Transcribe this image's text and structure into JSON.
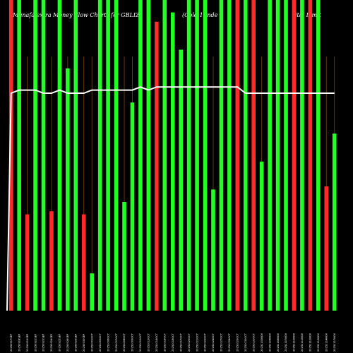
{
  "chart_data": {
    "type": "bar",
    "title_left": "Munafa extra Money Flow Charts for GBLIZ",
    "title_right": "(Gold 1 Inde",
    "title_right_end": "ital Limit",
    "categories": [
      "Wed 17 Sep",
      "Thu 18 Sep",
      "Fri 19 Sep",
      "Mon 22 Sep",
      "Tue 23 Sep",
      "Wed 24 Sep",
      "Thu 25 Sep",
      "Fri 26 Sep",
      "Mon 29 Sep",
      "Tue 30 Sep",
      "Wed 01 Oct",
      "Fri 03 Oct",
      "Mon 06 Oct",
      "Tue 07 Oct",
      "Wed 08 Oct",
      "Thu 09 Oct",
      "Fri 10 Oct",
      "Mon 13 Oct",
      "Tue 14 Oct",
      "Wed 15 Oct",
      "Thu 16 Oct",
      "Fri 17 Oct",
      "Mon 20 Oct",
      "Tue 21 Oct",
      "Thu 23 Oct",
      "Fri 24 Oct",
      "Mon 27 Oct",
      "Tue 28 Oct",
      "Wed 29 Oct",
      "Thu 30 Oct",
      "Fri 31 Oct",
      "Mon 03 Nov",
      "Tue 04 Nov",
      "Thu 06 Nov",
      "Fri 07 Nov",
      "Mon 10 Nov",
      "Tue 11 Nov",
      "Wed 12 Nov",
      "Thu 13 Nov",
      "Fri 14 Nov",
      "Mon 17 Nov"
    ],
    "tick_labels": [
      "20250917SEP",
      "20250918SEP",
      "20250919SEP",
      "20250922SEP",
      "20250923SEP",
      "20250924SEP",
      "20250925SEP",
      "20250926SEP",
      "20250929SEP",
      "20250930SEP",
      "20251001OCT",
      "20251003OCT",
      "20251006OCT",
      "20251007OCT",
      "20251008OCT",
      "20251009OCT",
      "20251010OCT",
      "20251013OCT",
      "20251014OCT",
      "20251015OCT",
      "20251016OCT",
      "20251017OCT",
      "20251020OCT",
      "20251021OCT",
      "20251023OCT",
      "20251024OCT",
      "20251027OCT",
      "20251028OCT",
      "20251029OCT",
      "20251030OCT",
      "20251031OCT",
      "20251103NOV",
      "20251104NOV",
      "20251106NOV",
      "20251107NOV",
      "20251110NOV",
      "20251111NOV",
      "20251112NOV",
      "20251113NOV",
      "20251114NOV",
      "20251117NOV"
    ],
    "values": [
      100,
      100,
      31,
      100,
      100,
      32,
      100,
      78,
      100,
      31,
      12,
      100,
      100,
      100,
      35,
      67,
      100,
      100,
      93,
      100,
      96,
      84,
      100,
      100,
      100,
      39,
      100,
      100,
      100,
      100,
      100,
      48,
      100,
      100,
      100,
      100,
      100,
      100,
      100,
      40,
      57
    ],
    "colors": [
      "#ff2a2a",
      "#22ff22",
      "#ff2a2a",
      "#22ff22",
      "#22ff22",
      "#ff2a2a",
      "#22ff22",
      "#22ff22",
      "#22ff22",
      "#ff2a2a",
      "#22ff22",
      "#22ff22",
      "#22ff22",
      "#22ff22",
      "#22ff22",
      "#22ff22",
      "#22ff22",
      "#22ff22",
      "#ff2a2a",
      "#22ff22",
      "#22ff22",
      "#22ff22",
      "#22ff22",
      "#22ff22",
      "#22ff22",
      "#22ff22",
      "#22ff22",
      "#22ff22",
      "#ff2a2a",
      "#22ff22",
      "#ff2a2a",
      "#22ff22",
      "#22ff22",
      "#22ff22",
      "#22ff22",
      "#ff2a2a",
      "#22ff22",
      "#ff2a2a",
      "#22ff22",
      "#ff2a2a",
      "#22ff22"
    ],
    "line_values": [
      70,
      71,
      71,
      71,
      70,
      70,
      71,
      70,
      70,
      70,
      71,
      71,
      71,
      71,
      71,
      71,
      72,
      71,
      72,
      72,
      72,
      72,
      72,
      72,
      72,
      72,
      72,
      72,
      72,
      70,
      70,
      70,
      70,
      70,
      70,
      70,
      70,
      70,
      70,
      70,
      70
    ],
    "ylim": [
      0,
      100
    ],
    "grid": false,
    "colors_meta": {
      "up": "#22ff22",
      "down": "#ff2a2a",
      "line": "#ffffff",
      "separator": "#7a4a10",
      "background": "#000000"
    }
  }
}
